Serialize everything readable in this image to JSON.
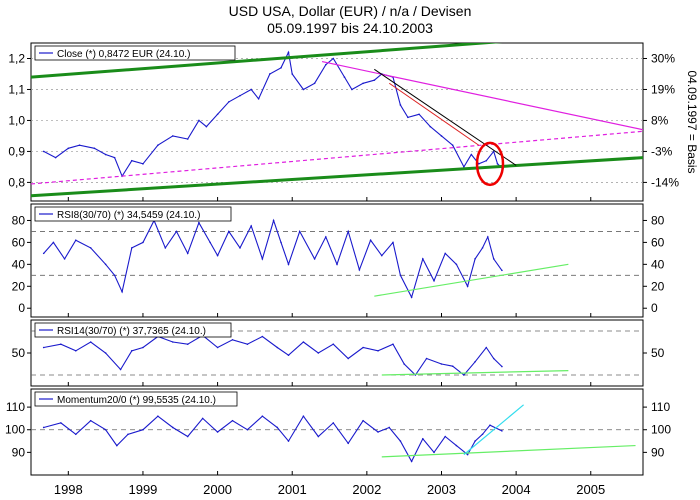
{
  "title": {
    "line1": "USD USA, Dollar (EUR) / n/a / Devisen",
    "line2": "05.09.1997 bis 24.10.2003"
  },
  "colors": {
    "series": "#1a1acc",
    "trend_green": "#1a8c1a",
    "support_light": "#66ee66",
    "resistance_magenta": "#e020e0",
    "trend_black": "#000000",
    "trend_red": "#dd2222",
    "circle": "#ee0000",
    "trend_cyan": "#33ddee",
    "dashed": "#666666"
  },
  "chart_data": [
    {
      "type": "line",
      "panel": "price",
      "legend": "Close (*) 0,8472 EUR (24.10.)",
      "ylim": [
        0.74,
        1.25
      ],
      "left_ticks": [
        "1,2",
        "1,1",
        "1,0",
        "0,9",
        "0,8"
      ],
      "left_tick_values": [
        1.2,
        1.1,
        1.0,
        0.9,
        0.8
      ],
      "right_ticks": [
        "30%",
        "19%",
        "8%",
        "-3%",
        "-14%"
      ],
      "right_axis_label": "04.09.1997 = Basis",
      "grid": true,
      "series": [
        {
          "x": [
            1997.67,
            1997.83,
            1998.0,
            1998.15,
            1998.35,
            1998.5,
            1998.62,
            1998.72,
            1998.85,
            1999.0,
            1999.2,
            1999.4,
            1999.6,
            1999.75,
            1999.85,
            2000.0,
            2000.15,
            2000.3,
            2000.45,
            2000.55,
            2000.7,
            2000.85,
            2000.95,
            2001.0,
            2001.15,
            2001.3,
            2001.45,
            2001.55,
            2001.7,
            2001.8,
            2001.95,
            2002.1,
            2002.2,
            2002.35,
            2002.45,
            2002.55,
            2002.7,
            2002.85,
            2003.0,
            2003.15,
            2003.3,
            2003.4,
            2003.5,
            2003.6,
            2003.7,
            2003.75,
            2003.81
          ],
          "y": [
            0.9,
            0.88,
            0.91,
            0.92,
            0.91,
            0.89,
            0.88,
            0.82,
            0.87,
            0.86,
            0.92,
            0.95,
            0.94,
            1.0,
            0.98,
            1.02,
            1.06,
            1.08,
            1.1,
            1.07,
            1.15,
            1.17,
            1.22,
            1.15,
            1.1,
            1.12,
            1.18,
            1.2,
            1.14,
            1.1,
            1.12,
            1.13,
            1.15,
            1.14,
            1.05,
            1.01,
            1.02,
            0.98,
            0.95,
            0.92,
            0.85,
            0.89,
            0.86,
            0.87,
            0.9,
            0.86,
            0.847
          ]
        }
      ],
      "trendlines": [
        {
          "name": "upper-green",
          "x": [
            1997.5,
            2004.1
          ],
          "y": [
            1.14,
            1.26
          ]
        },
        {
          "name": "lower-green",
          "x": [
            1997.5,
            2005.7
          ],
          "y": [
            0.757,
            0.88
          ]
        },
        {
          "name": "magenta-resistance",
          "x": [
            2001.4,
            2005.7
          ],
          "y": [
            1.19,
            0.97
          ]
        },
        {
          "name": "magenta-dashed",
          "x": [
            1997.5,
            2005.7
          ],
          "y": [
            0.795,
            0.965
          ]
        },
        {
          "name": "black",
          "x": [
            2002.1,
            2004.0
          ],
          "y": [
            1.165,
            0.855
          ]
        },
        {
          "name": "red",
          "x": [
            2002.3,
            2003.5
          ],
          "y": [
            1.12,
            0.92
          ]
        }
      ],
      "highlight": {
        "x": 2003.65,
        "y": 0.86
      }
    },
    {
      "type": "line",
      "panel": "rsi8",
      "legend": "RSI8(30/70) (*) 34,5459 (24.10.)",
      "ylim": [
        -8,
        95
      ],
      "left_ticks": [
        "80",
        "60",
        "40",
        "20",
        "0"
      ],
      "right_ticks": [
        "80",
        "60",
        "40",
        "20",
        "0"
      ],
      "tick_values": [
        80,
        60,
        40,
        20,
        0
      ],
      "dashed_levels": [
        70,
        30
      ],
      "series": [
        {
          "x": [
            1997.67,
            1997.8,
            1997.95,
            1998.1,
            1998.3,
            1998.5,
            1998.62,
            1998.72,
            1998.85,
            1999.0,
            1999.15,
            1999.3,
            1999.45,
            1999.6,
            1999.75,
            1999.9,
            2000.0,
            2000.15,
            2000.3,
            2000.45,
            2000.6,
            2000.75,
            2000.85,
            2000.95,
            2001.1,
            2001.3,
            2001.45,
            2001.6,
            2001.75,
            2001.9,
            2002.05,
            2002.2,
            2002.35,
            2002.45,
            2002.6,
            2002.75,
            2002.9,
            2003.05,
            2003.2,
            2003.35,
            2003.45,
            2003.55,
            2003.62,
            2003.7,
            2003.81
          ],
          "y": [
            50,
            60,
            45,
            62,
            55,
            40,
            30,
            15,
            55,
            60,
            80,
            55,
            70,
            50,
            78,
            60,
            48,
            70,
            55,
            75,
            45,
            80,
            60,
            40,
            70,
            45,
            65,
            40,
            70,
            35,
            62,
            48,
            60,
            30,
            10,
            45,
            25,
            50,
            40,
            20,
            45,
            55,
            65,
            45,
            34.5
          ]
        }
      ],
      "trendlines": [
        {
          "name": "rsi8-support",
          "x": [
            2002.1,
            2004.7
          ],
          "y": [
            11,
            40
          ]
        }
      ]
    },
    {
      "type": "line",
      "panel": "rsi14",
      "legend": "RSI14(30/70) (*) 37,7365 (24.10.)",
      "ylim": [
        20,
        80
      ],
      "left_ticks": [
        "50"
      ],
      "right_ticks": [
        "50"
      ],
      "tick_values": [
        50
      ],
      "dashed_levels": [
        70,
        30
      ],
      "series": [
        {
          "x": [
            1997.67,
            1997.9,
            1998.1,
            1998.3,
            1998.5,
            1998.7,
            1998.85,
            1999.0,
            1999.2,
            1999.4,
            1999.6,
            1999.8,
            2000.0,
            2000.2,
            2000.4,
            2000.6,
            2000.8,
            2000.95,
            2001.15,
            2001.35,
            2001.55,
            2001.75,
            2001.95,
            2002.15,
            2002.35,
            2002.5,
            2002.65,
            2002.8,
            2003.0,
            2003.15,
            2003.3,
            2003.45,
            2003.6,
            2003.7,
            2003.81
          ],
          "y": [
            55,
            58,
            52,
            60,
            50,
            35,
            52,
            55,
            65,
            60,
            58,
            66,
            55,
            62,
            58,
            65,
            55,
            48,
            60,
            50,
            58,
            45,
            55,
            52,
            58,
            40,
            30,
            45,
            40,
            38,
            30,
            42,
            55,
            45,
            37.7
          ]
        }
      ],
      "trendlines": [
        {
          "name": "rsi14-support",
          "x": [
            2002.2,
            2004.7
          ],
          "y": [
            30,
            34
          ]
        }
      ]
    },
    {
      "type": "line",
      "panel": "momentum",
      "legend": "Momentum20/0 (*) 99,5535 (24.10.)",
      "ylim": [
        80,
        118
      ],
      "left_ticks": [
        "110",
        "100",
        "90"
      ],
      "right_ticks": [
        "110",
        "100",
        "90"
      ],
      "tick_values": [
        110,
        100,
        90
      ],
      "dashed_levels": [
        100
      ],
      "series": [
        {
          "x": [
            1997.67,
            1997.9,
            1998.1,
            1998.3,
            1998.5,
            1998.65,
            1998.8,
            1999.0,
            1999.2,
            1999.4,
            1999.6,
            1999.8,
            2000.0,
            2000.2,
            2000.4,
            2000.6,
            2000.8,
            2000.95,
            2001.15,
            2001.35,
            2001.55,
            2001.75,
            2001.95,
            2002.15,
            2002.3,
            2002.45,
            2002.6,
            2002.75,
            2002.9,
            2003.05,
            2003.2,
            2003.35,
            2003.45,
            2003.55,
            2003.65,
            2003.81
          ],
          "y": [
            101,
            103,
            98,
            104,
            100,
            93,
            98,
            100,
            106,
            101,
            97,
            105,
            99,
            104,
            100,
            106,
            101,
            95,
            106,
            97,
            103,
            94,
            104,
            99,
            101,
            95,
            86,
            96,
            90,
            97,
            93,
            89,
            95,
            98,
            102,
            99.5
          ]
        }
      ],
      "trendlines": [
        {
          "name": "momentum-support",
          "x": [
            2002.2,
            2005.6
          ],
          "y": [
            88,
            93
          ]
        },
        {
          "name": "momentum-cyan",
          "x": [
            2003.3,
            2004.1
          ],
          "y": [
            89,
            111
          ]
        }
      ]
    }
  ],
  "x_axis": {
    "ticks": [
      "1998",
      "1999",
      "2000",
      "2001",
      "2002",
      "2003",
      "2004",
      "2005"
    ],
    "tick_values": [
      1998,
      1999,
      2000,
      2001,
      2002,
      2003,
      2004,
      2005
    ],
    "xlim": [
      1997.5,
      2005.7
    ]
  }
}
